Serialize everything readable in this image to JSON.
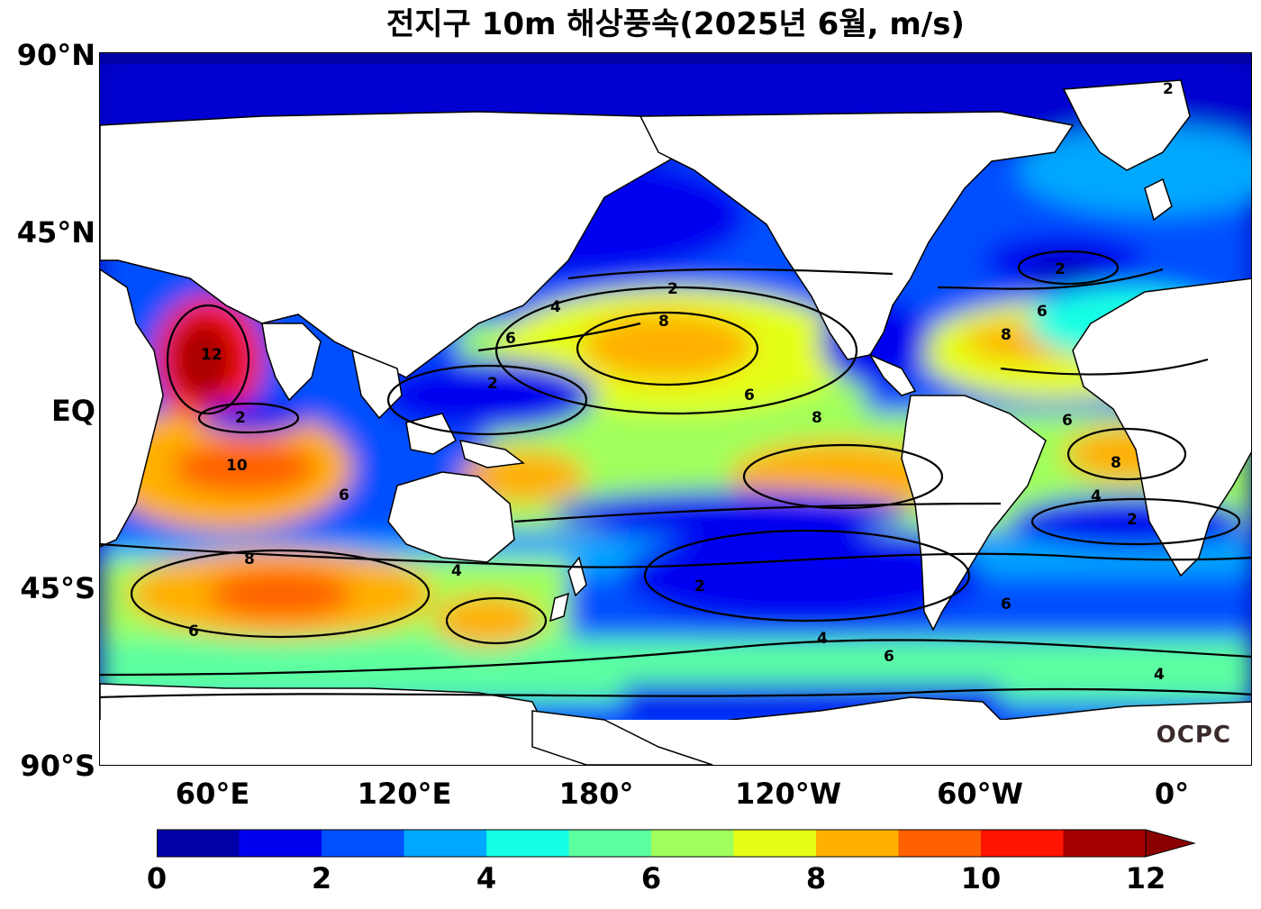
{
  "title": "전지구 10m 해상풍속(2025년 6월, m/s)",
  "watermark": "OCPC",
  "lat_labels": [
    "90°N",
    "45°N",
    "EQ",
    "45°S",
    "90°S"
  ],
  "lon_labels": [
    "60°E",
    "120°E",
    "180°",
    "120°W",
    "60°W",
    "0°"
  ],
  "colorbar": {
    "ticks": [
      "0",
      "2",
      "4",
      "6",
      "8",
      "10",
      "12"
    ],
    "colors": [
      "#0000a8",
      "#0000f0",
      "#0050ff",
      "#00a8ff",
      "#14ffe4",
      "#5cffa0",
      "#a0ff5c",
      "#e4ff14",
      "#ffb000",
      "#ff6000",
      "#ff1400",
      "#a80000"
    ],
    "extend_color": "#8a0000"
  },
  "contour_labels": [
    "2",
    "4",
    "6",
    "8",
    "10",
    "12"
  ]
}
